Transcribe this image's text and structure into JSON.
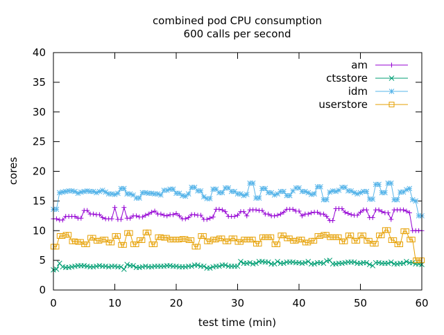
{
  "chart_data": {
    "type": "line",
    "title": "combined pod CPU consumption",
    "subtitle": "600 calls per second",
    "xlabel": "test time (min)",
    "ylabel": "cores",
    "xlim": [
      0,
      60
    ],
    "ylim": [
      0,
      40
    ],
    "xticks": [
      0,
      10,
      20,
      30,
      40,
      50,
      60
    ],
    "yticks": [
      0,
      5,
      10,
      15,
      20,
      25,
      30,
      35,
      40
    ],
    "grid": false,
    "legend_position": "top-right",
    "x_step_min": 0.5,
    "series": [
      {
        "name": "am",
        "color": "#9400d3",
        "marker": "plus",
        "values": [
          12.0,
          12.0,
          11.8,
          11.8,
          12.4,
          12.4,
          12.4,
          12.4,
          12.1,
          12.1,
          13.4,
          13.4,
          12.8,
          12.8,
          12.7,
          12.7,
          12.2,
          12.0,
          12.0,
          12.0,
          13.9,
          11.9,
          11.9,
          13.9,
          12.1,
          12.1,
          12.5,
          12.5,
          12.3,
          12.3,
          12.6,
          12.8,
          13.1,
          13.3,
          12.8,
          12.8,
          12.6,
          12.5,
          12.7,
          12.7,
          12.9,
          12.5,
          12.0,
          12.0,
          12.2,
          12.7,
          12.7,
          12.6,
          12.6,
          11.9,
          11.9,
          12.1,
          12.3,
          13.6,
          13.6,
          13.5,
          13.2,
          12.4,
          12.4,
          12.4,
          12.6,
          13.2,
          13.2,
          12.5,
          13.5,
          13.5,
          13.5,
          13.4,
          13.4,
          12.8,
          12.8,
          12.5,
          12.5,
          12.6,
          12.8,
          13.1,
          13.6,
          13.6,
          13.6,
          13.3,
          13.3,
          12.5,
          12.8,
          12.8,
          13.0,
          13.1,
          13.1,
          12.8,
          12.8,
          12.4,
          11.7,
          11.7,
          13.7,
          13.7,
          13.7,
          13.1,
          12.9,
          12.7,
          12.6,
          12.6,
          13.1,
          13.5,
          13.5,
          12.2,
          12.2,
          13.5,
          13.5,
          13.2,
          13.0,
          13.0,
          11.9,
          13.5,
          13.5,
          13.5,
          13.5,
          13.3,
          13.0,
          10.0,
          10.0,
          10.0,
          10.0
        ]
      },
      {
        "name": "ctsstore",
        "color": "#009e73",
        "marker": "cross",
        "values": [
          3.4,
          3.5,
          4.5,
          3.9,
          3.8,
          3.8,
          3.9,
          4.0,
          4.1,
          4.1,
          4.1,
          4.0,
          3.9,
          3.9,
          4.0,
          4.1,
          4.0,
          4.0,
          3.9,
          4.0,
          4.0,
          3.9,
          3.9,
          3.5,
          4.3,
          4.1,
          4.1,
          3.8,
          3.8,
          3.9,
          4.0,
          3.9,
          3.9,
          4.0,
          4.0,
          4.0,
          4.0,
          4.1,
          4.1,
          4.0,
          4.0,
          3.9,
          3.9,
          3.9,
          4.0,
          4.0,
          4.2,
          4.2,
          4.0,
          4.0,
          3.7,
          3.7,
          3.9,
          4.0,
          4.0,
          4.2,
          4.2,
          4.0,
          4.0,
          4.0,
          4.0,
          4.8,
          4.5,
          4.5,
          4.6,
          4.4,
          4.5,
          4.8,
          4.8,
          4.7,
          4.7,
          4.4,
          4.4,
          4.8,
          4.5,
          4.5,
          4.7,
          4.7,
          4.7,
          4.6,
          4.6,
          4.5,
          4.6,
          4.8,
          4.4,
          4.4,
          4.6,
          4.6,
          4.5,
          4.9,
          5.0,
          4.4,
          4.4,
          4.5,
          4.5,
          4.6,
          4.7,
          4.7,
          4.7,
          4.5,
          4.5,
          4.6,
          4.6,
          4.3,
          4.1,
          4.6,
          4.6,
          4.5,
          4.5,
          4.5,
          4.7,
          4.4,
          4.4,
          4.5,
          4.5,
          4.8,
          4.6,
          4.6,
          4.4,
          4.4,
          4.3
        ]
      },
      {
        "name": "idm",
        "color": "#56b4e9",
        "marker": "star",
        "values": [
          13.6,
          13.6,
          16.4,
          16.5,
          16.6,
          16.7,
          16.7,
          16.6,
          16.3,
          16.5,
          16.6,
          16.7,
          16.6,
          16.6,
          16.4,
          16.6,
          16.8,
          16.5,
          16.2,
          16.2,
          16.1,
          16.3,
          17.1,
          17.1,
          16.2,
          16.2,
          16.0,
          15.5,
          15.5,
          16.4,
          16.4,
          16.3,
          16.3,
          16.2,
          16.2,
          16.0,
          16.8,
          16.8,
          17.0,
          17.0,
          16.3,
          16.3,
          15.9,
          15.8,
          16.2,
          17.3,
          17.3,
          16.7,
          16.7,
          15.7,
          15.4,
          15.4,
          17.0,
          17.0,
          16.4,
          16.4,
          17.2,
          17.2,
          16.6,
          16.6,
          16.2,
          16.2,
          15.9,
          16.1,
          18.0,
          18.0,
          15.5,
          15.5,
          17.1,
          17.1,
          16.4,
          16.4,
          16.0,
          16.2,
          16.6,
          16.6,
          15.9,
          15.9,
          16.7,
          17.2,
          17.2,
          16.6,
          16.6,
          16.4,
          16.1,
          16.2,
          17.4,
          17.4,
          15.2,
          15.2,
          16.5,
          16.7,
          16.6,
          16.8,
          17.3,
          17.3,
          16.7,
          16.7,
          16.4,
          16.2,
          16.4,
          16.6,
          16.6,
          15.3,
          15.3,
          17.8,
          17.8,
          16.4,
          16.4,
          18.0,
          18.0,
          15.2,
          15.2,
          16.5,
          16.5,
          16.9,
          17.1,
          15.2,
          15.0,
          12.5,
          12.5
        ]
      },
      {
        "name": "userstore",
        "color": "#e69f00",
        "marker": "square",
        "values": [
          7.3,
          7.3,
          9.1,
          9.1,
          9.3,
          9.3,
          8.2,
          8.2,
          8.1,
          8.1,
          7.7,
          7.7,
          8.8,
          8.8,
          8.3,
          8.3,
          8.5,
          8.5,
          8.0,
          8.0,
          9.1,
          9.1,
          7.6,
          7.6,
          9.6,
          9.6,
          7.7,
          7.7,
          8.4,
          8.4,
          9.7,
          9.7,
          7.7,
          7.7,
          8.9,
          8.9,
          8.8,
          8.8,
          8.5,
          8.5,
          8.5,
          8.5,
          8.6,
          8.6,
          8.4,
          8.4,
          7.3,
          7.3,
          9.1,
          9.1,
          8.2,
          8.2,
          8.5,
          8.5,
          8.7,
          8.7,
          8.2,
          8.2,
          8.7,
          8.7,
          8.1,
          8.1,
          8.5,
          8.5,
          8.5,
          8.5,
          7.8,
          7.8,
          8.9,
          8.9,
          8.9,
          8.9,
          7.7,
          7.7,
          9.2,
          9.2,
          8.7,
          8.7,
          8.3,
          8.3,
          8.5,
          8.5,
          8.0,
          8.0,
          8.3,
          8.3,
          9.1,
          9.1,
          9.3,
          9.3,
          8.9,
          8.9,
          8.9,
          8.9,
          8.2,
          8.2,
          9.2,
          9.2,
          8.3,
          8.3,
          9.2,
          9.2,
          8.3,
          8.3,
          7.8,
          7.8,
          9.2,
          9.2,
          10.1,
          10.1,
          8.4,
          8.4,
          7.7,
          7.7,
          9.9,
          9.9,
          8.5,
          8.5,
          5.0,
          5.0,
          5.0
        ]
      }
    ]
  }
}
